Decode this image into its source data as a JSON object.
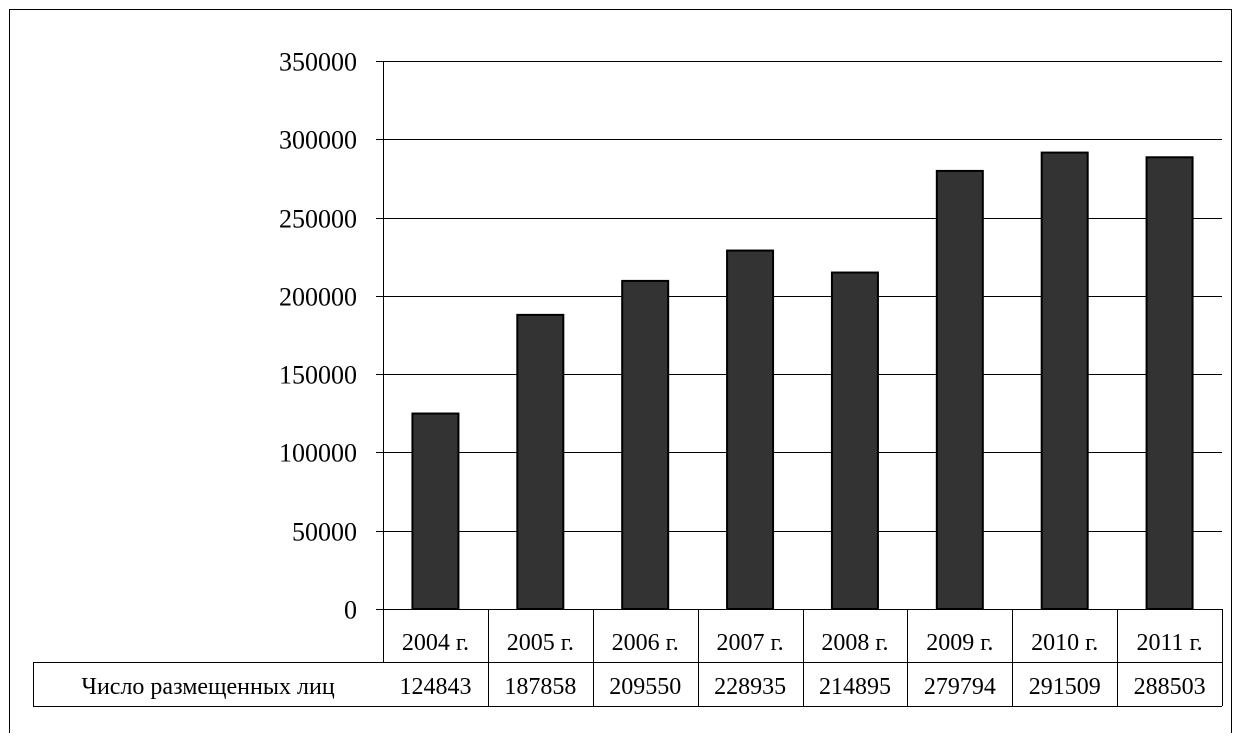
{
  "chart_data": {
    "type": "bar",
    "title": "",
    "xlabel": "",
    "ylabel": "",
    "categories": [
      "2004 г.",
      "2005 г.",
      "2006 г.",
      "2007 г.",
      "2008 г.",
      "2009 г.",
      "2010 г.",
      "2011 г."
    ],
    "series": [
      {
        "name": "Число размещенных лиц",
        "values": [
          124843,
          187858,
          209550,
          228935,
          214895,
          279794,
          291509,
          288503
        ],
        "value_labels": [
          "124843",
          "187858",
          "209550",
          "228935",
          "214895",
          "279794",
          "291509",
          "288503"
        ],
        "color": "#333333"
      }
    ],
    "ylim": [
      0,
      350000
    ],
    "yticks": [
      0,
      50000,
      100000,
      150000,
      200000,
      250000,
      300000,
      350000
    ],
    "ytick_labels": [
      "0",
      "50000",
      "100000",
      "150000",
      "200000",
      "250000",
      "300000",
      "350000"
    ],
    "grid": true,
    "legend": "data-table"
  },
  "colors": {
    "bar_fill": "#333333",
    "bar_stroke": "#000000",
    "gridline": "#000000",
    "background": "#ffffff"
  }
}
